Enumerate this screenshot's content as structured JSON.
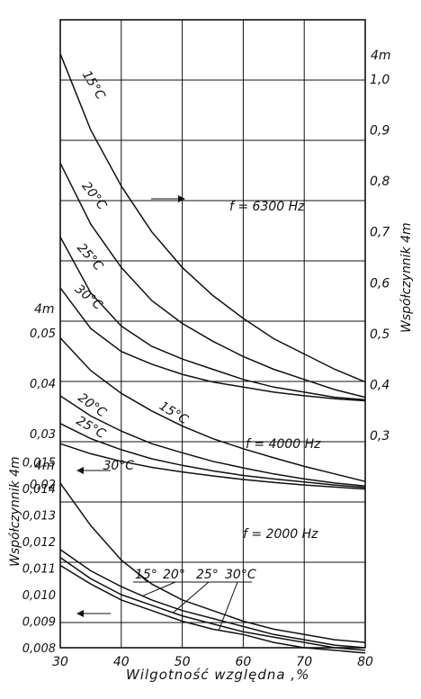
{
  "chart_data": {
    "type": "line",
    "xlabel": "Wilgotność względna ,%",
    "x_ticks": [
      "30",
      "40",
      "50",
      "60",
      "70",
      "80"
    ],
    "xlim": [
      30,
      80
    ],
    "grid": true,
    "panels": [
      {
        "frequency_label": "f = 6300 Hz",
        "axis_side": "right",
        "axis_unit": "4m",
        "axis_label": "Współczynnik   4m",
        "ylim": [
          0.25,
          1.1
        ],
        "y_ticks": [
          "0,3",
          "0,4",
          "0,5",
          "0,6",
          "0,7",
          "0,8",
          "0,9",
          "1,0"
        ],
        "series": [
          {
            "name": "15°C",
            "x": [
              30,
              35,
              40,
              45,
              50,
              55,
              60,
              65,
              70,
              75,
              80
            ],
            "y": [
              1.05,
              0.9,
              0.79,
              0.7,
              0.63,
              0.575,
              0.53,
              0.49,
              0.46,
              0.43,
              0.405
            ]
          },
          {
            "name": "20°C",
            "x": [
              30,
              35,
              40,
              45,
              50,
              55,
              60,
              65,
              70,
              75,
              80
            ],
            "y": [
              0.835,
              0.715,
              0.63,
              0.565,
              0.52,
              0.485,
              0.455,
              0.43,
              0.41,
              0.39,
              0.375
            ]
          },
          {
            "name": "25°C",
            "x": [
              30,
              35,
              40,
              45,
              50,
              55,
              60,
              65,
              70,
              75,
              80
            ],
            "y": [
              0.69,
              0.58,
              0.515,
              0.475,
              0.45,
              0.43,
              0.41,
              0.395,
              0.385,
              0.375,
              0.37
            ]
          },
          {
            "name": "30°C",
            "x": [
              30,
              35,
              40,
              45,
              50,
              55,
              60,
              65,
              70,
              75,
              80
            ],
            "y": [
              0.59,
              0.51,
              0.465,
              0.44,
              0.42,
              0.405,
              0.395,
              0.385,
              0.378,
              0.372,
              0.368
            ]
          }
        ]
      },
      {
        "frequency_label": "f = 4000 Hz",
        "axis_side": "left",
        "axis_unit": "4m",
        "axis_label": "Współczynnik   4m",
        "ylim": [
          0.015,
          0.055
        ],
        "y_ticks": [
          "0,02",
          "0,03",
          "0,04",
          "0,05"
        ],
        "series": [
          {
            "name": "15°C",
            "x": [
              30,
              35,
              40,
              45,
              50,
              55,
              60,
              65,
              70,
              75,
              80
            ],
            "y": [
              0.049,
              0.0425,
              0.038,
              0.0345,
              0.0315,
              0.029,
              0.027,
              0.0252,
              0.0235,
              0.022,
              0.0205
            ]
          },
          {
            "name": "20°C",
            "x": [
              30,
              35,
              40,
              45,
              50,
              55,
              60,
              65,
              70,
              75,
              80
            ],
            "y": [
              0.0375,
              0.0335,
              0.0305,
              0.028,
              0.0262,
              0.0245,
              0.0232,
              0.022,
              0.021,
              0.0202,
              0.0196
            ]
          },
          {
            "name": "25°C",
            "x": [
              30,
              35,
              40,
              45,
              50,
              55,
              60,
              65,
              70,
              75,
              80
            ],
            "y": [
              0.032,
              0.029,
              0.0268,
              0.025,
              0.0237,
              0.0226,
              0.0217,
              0.021,
              0.0204,
              0.0198,
              0.0193
            ]
          },
          {
            "name": "30°C",
            "x": [
              30,
              35,
              40,
              45,
              50,
              55,
              60,
              65,
              70,
              75,
              80
            ],
            "y": [
              0.028,
              0.026,
              0.0245,
              0.0233,
              0.0224,
              0.0216,
              0.0209,
              0.0203,
              0.0198,
              0.0194,
              0.019
            ]
          }
        ]
      },
      {
        "frequency_label": "f = 2000 Hz",
        "axis_side": "left",
        "axis_unit": "4m",
        "axis_label": "Współczynnik   4m",
        "ylim": [
          0.008,
          0.02
        ],
        "y_ticks": [
          "0,008",
          "0,009",
          "0,010",
          "0,011",
          "0,012",
          "0,013",
          "0,014",
          "0,015"
        ],
        "series_labels": [
          "15°",
          "20°",
          "25°",
          "30°C"
        ],
        "series": [
          {
            "name": "15°",
            "x": [
              30,
              35,
              40,
              45,
              50,
              55,
              60,
              65,
              70,
              75,
              80
            ],
            "y": [
              0.0142,
              0.0126,
              0.0113,
              0.0104,
              0.0098,
              0.0094,
              0.009,
              0.0087,
              0.0085,
              0.0083,
              0.0082
            ]
          },
          {
            "name": "20°",
            "x": [
              30,
              35,
              40,
              45,
              50,
              55,
              60,
              65,
              70,
              75,
              80
            ],
            "y": [
              0.0117,
              0.0109,
              0.0103,
              0.0098,
              0.0094,
              0.0091,
              0.0088,
              0.0085,
              0.0083,
              0.0081,
              0.008
            ]
          },
          {
            "name": "25°",
            "x": [
              30,
              35,
              40,
              45,
              50,
              55,
              60,
              65,
              70,
              75,
              80
            ],
            "y": [
              0.0114,
              0.0106,
              0.01,
              0.0096,
              0.0092,
              0.0089,
              0.0086,
              0.0084,
              0.0082,
              0.008,
              0.0079
            ]
          },
          {
            "name": "30°C",
            "x": [
              30,
              35,
              40,
              45,
              50,
              55,
              60,
              65,
              70,
              75,
              80
            ],
            "y": [
              0.0111,
              0.0104,
              0.0098,
              0.0094,
              0.009,
              0.0087,
              0.0085,
              0.0082,
              0.008,
              0.0079,
              0.0078
            ]
          }
        ]
      }
    ]
  }
}
